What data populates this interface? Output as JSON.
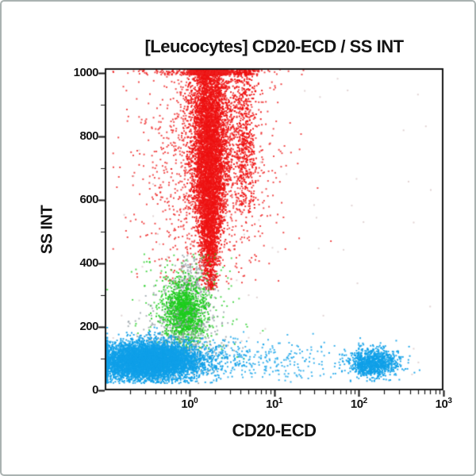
{
  "window": {
    "background": "#ffffff",
    "border_color": "#aab2b1"
  },
  "chart_data": {
    "type": "scatter",
    "title": "[Leucocytes] CD20-ECD / SS INT",
    "xlabel": "CD20-ECD",
    "ylabel": "SS INT",
    "x_scale": "log",
    "x_log_range": [
      -1,
      3
    ],
    "y_range": [
      0,
      1015
    ],
    "grid": false,
    "legend": null,
    "y_ticks": [
      0,
      200,
      400,
      600,
      800,
      1000
    ],
    "y_minor_ticks": [
      100,
      300,
      500,
      700,
      900
    ],
    "x_ticks": [
      {
        "log": 0,
        "base": "10",
        "exp": "0"
      },
      {
        "log": 1,
        "base": "10",
        "exp": "1"
      },
      {
        "log": 2,
        "base": "10",
        "exp": "2"
      },
      {
        "log": 3,
        "base": "10",
        "exp": "3"
      }
    ],
    "axis_color": "#151515",
    "seed": 42,
    "populations": [
      {
        "name": "granulocytes-core",
        "color": "#ee1111",
        "count": 6500,
        "alpha": 0.92,
        "x": {
          "dist": "gauss",
          "mean": 0.24,
          "sd": 0.11
        },
        "y": {
          "dist": "gauss",
          "mean": 745,
          "sd": 222
        },
        "y_clip": [
          315,
          1012
        ],
        "x_clip": [
          -0.95,
          2.95
        ],
        "taper": {
          "y0": 315,
          "y1": 700,
          "min": 0.3
        }
      },
      {
        "name": "granulocytes-halo",
        "color": "#ee2020",
        "count": 1700,
        "alpha": 0.8,
        "x": {
          "dist": "gauss",
          "mean": 0.22,
          "sd": 0.4
        },
        "y": {
          "dist": "gauss",
          "mean": 720,
          "sd": 260
        },
        "y_clip": [
          335,
          1012
        ],
        "x_clip": [
          -0.9,
          2.9
        ]
      },
      {
        "name": "eosinophils-streak",
        "color": "#ee1111",
        "count": 650,
        "alpha": 0.9,
        "x": {
          "dist": "gauss",
          "mean": 0.66,
          "sd": 0.07
        },
        "y": {
          "dist": "gauss",
          "mean": 820,
          "sd": 170
        },
        "y_clip": [
          560,
          1012
        ],
        "x_clip": [
          -0.9,
          2.9
        ]
      },
      {
        "name": "transition-gray",
        "color": "#96a0a6",
        "count": 300,
        "alpha": 0.8,
        "x": {
          "dist": "gauss",
          "mean": 0.02,
          "sd": 0.12
        },
        "y": {
          "dist": "gauss",
          "mean": 318,
          "sd": 55
        },
        "y_clip": [
          210,
          430
        ],
        "x_clip": [
          -0.95,
          2.9
        ]
      },
      {
        "name": "monocytes",
        "color": "#1ecc1e",
        "count": 1250,
        "alpha": 0.92,
        "x": {
          "dist": "gauss",
          "mean": -0.06,
          "sd": 0.12
        },
        "y": {
          "dist": "gauss",
          "mean": 245,
          "sd": 46
        },
        "y_clip": [
          120,
          400
        ],
        "x_clip": [
          -0.95,
          2.9
        ]
      },
      {
        "name": "monocytes-halo",
        "color": "#1ecc1e",
        "count": 300,
        "alpha": 0.75,
        "x": {
          "dist": "gauss",
          "mean": -0.02,
          "sd": 0.3
        },
        "y": {
          "dist": "gauss",
          "mean": 255,
          "sd": 95
        },
        "y_clip": [
          95,
          430
        ],
        "x_clip": [
          -0.97,
          2.9
        ]
      },
      {
        "name": "debris-gray",
        "color": "#96a0a6",
        "count": 430,
        "alpha": 0.8,
        "x": {
          "dist": "gauss",
          "mean": -0.08,
          "sd": 0.26
        },
        "y": {
          "dist": "gauss",
          "mean": 160,
          "sd": 70
        },
        "y_clip": [
          22,
          330
        ],
        "x_clip": [
          -0.97,
          2.9
        ]
      },
      {
        "name": "lymphocytes",
        "color": "#0fa0e8",
        "count": 6200,
        "alpha": 0.92,
        "x": {
          "dist": "gauss",
          "mean": -0.48,
          "sd": 0.3
        },
        "y": {
          "dist": "gauss",
          "mean": 92,
          "sd": 30
        },
        "y_clip": [
          22,
          200
        ],
        "x_clip": [
          -0.97,
          0.7
        ]
      },
      {
        "name": "lymphocytes-tail",
        "color": "#0fa0e8",
        "count": 520,
        "alpha": 0.8,
        "x": {
          "dist": "gauss",
          "mean": 0.45,
          "sd": 0.75
        },
        "y": {
          "dist": "gauss",
          "mean": 95,
          "sd": 32
        },
        "y_clip": [
          25,
          190
        ],
        "x_clip": [
          -0.3,
          2.0
        ]
      },
      {
        "name": "b-cells-cd20pos",
        "color": "#0fa0e8",
        "count": 1000,
        "alpha": 0.9,
        "x": {
          "dist": "gauss",
          "mean": 2.17,
          "sd": 0.15
        },
        "y": {
          "dist": "gauss",
          "mean": 85,
          "sd": 24
        },
        "y_clip": [
          25,
          175
        ],
        "x_clip": [
          1.65,
          2.75
        ]
      },
      {
        "name": "sparse-noise",
        "color": "#cdb6b6",
        "count": 60,
        "alpha": 0.6,
        "x": {
          "dist": "uniform",
          "min": -0.9,
          "max": 2.9
        },
        "y": {
          "dist": "uniform",
          "min": 30,
          "max": 1000
        }
      }
    ]
  }
}
